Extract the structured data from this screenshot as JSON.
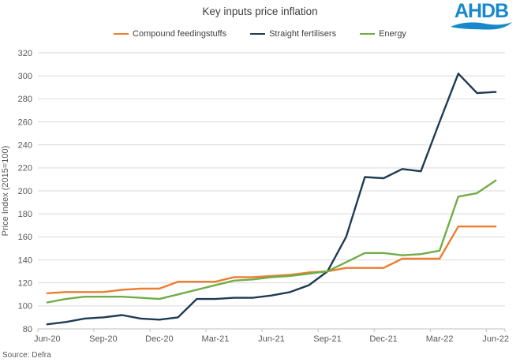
{
  "header": {
    "title": "Key inputs price inflation",
    "logo_text": "AHDB",
    "logo_color": "#1789CB"
  },
  "source": "Source: Defra",
  "chart_data": {
    "type": "line",
    "title": "Key inputs price inflation",
    "ylabel": "Price Index (2015=100)",
    "ylim": [
      80,
      320
    ],
    "ytick_step": 20,
    "y_ticks": [
      80,
      100,
      120,
      140,
      160,
      180,
      200,
      220,
      240,
      260,
      280,
      300,
      320
    ],
    "grid": "horizontal",
    "legend_position": "top",
    "categories": [
      "Jun-20",
      "Jul-20",
      "Aug-20",
      "Sep-20",
      "Oct-20",
      "Nov-20",
      "Dec-20",
      "Jan-21",
      "Feb-21",
      "Mar-21",
      "Apr-21",
      "May-21",
      "Jun-21",
      "Jul-21",
      "Aug-21",
      "Sep-21",
      "Oct-21",
      "Nov-21",
      "Dec-21",
      "Jan-22",
      "Feb-22",
      "Mar-22",
      "Apr-22",
      "May-22",
      "Jun-22"
    ],
    "x_tick_labels": [
      "Jun-20",
      "Sep-20",
      "Dec-20",
      "Mar-21",
      "Jun-21",
      "Sep-21",
      "Dec-21",
      "Mar-22",
      "Jun-22"
    ],
    "series": [
      {
        "name": "Compound feedingstuffs",
        "color": "#ED7D31",
        "values": [
          111,
          112,
          112,
          112,
          114,
          115,
          115,
          121,
          121,
          121,
          125,
          125,
          126,
          127,
          129,
          130,
          133,
          133,
          133,
          141,
          141,
          141,
          169,
          169,
          169
        ]
      },
      {
        "name": "Straight fertilisers",
        "color": "#1F3B53",
        "values": [
          84,
          86,
          89,
          90,
          92,
          89,
          88,
          90,
          106,
          106,
          107,
          107,
          109,
          112,
          118,
          130,
          160,
          212,
          211,
          219,
          217,
          260,
          302,
          285,
          286
        ]
      },
      {
        "name": "Energy",
        "color": "#70AD47",
        "values": [
          103,
          106,
          108,
          108,
          108,
          107,
          106,
          110,
          114,
          118,
          122,
          123,
          125,
          126,
          128,
          130,
          138,
          146,
          146,
          144,
          145,
          148,
          195,
          198,
          209
        ]
      }
    ],
    "colors": {
      "gridline": "#D9D9D9",
      "axis_line": "#BFBFBF",
      "tick_text": "#595959",
      "title_text": "#404040"
    }
  }
}
